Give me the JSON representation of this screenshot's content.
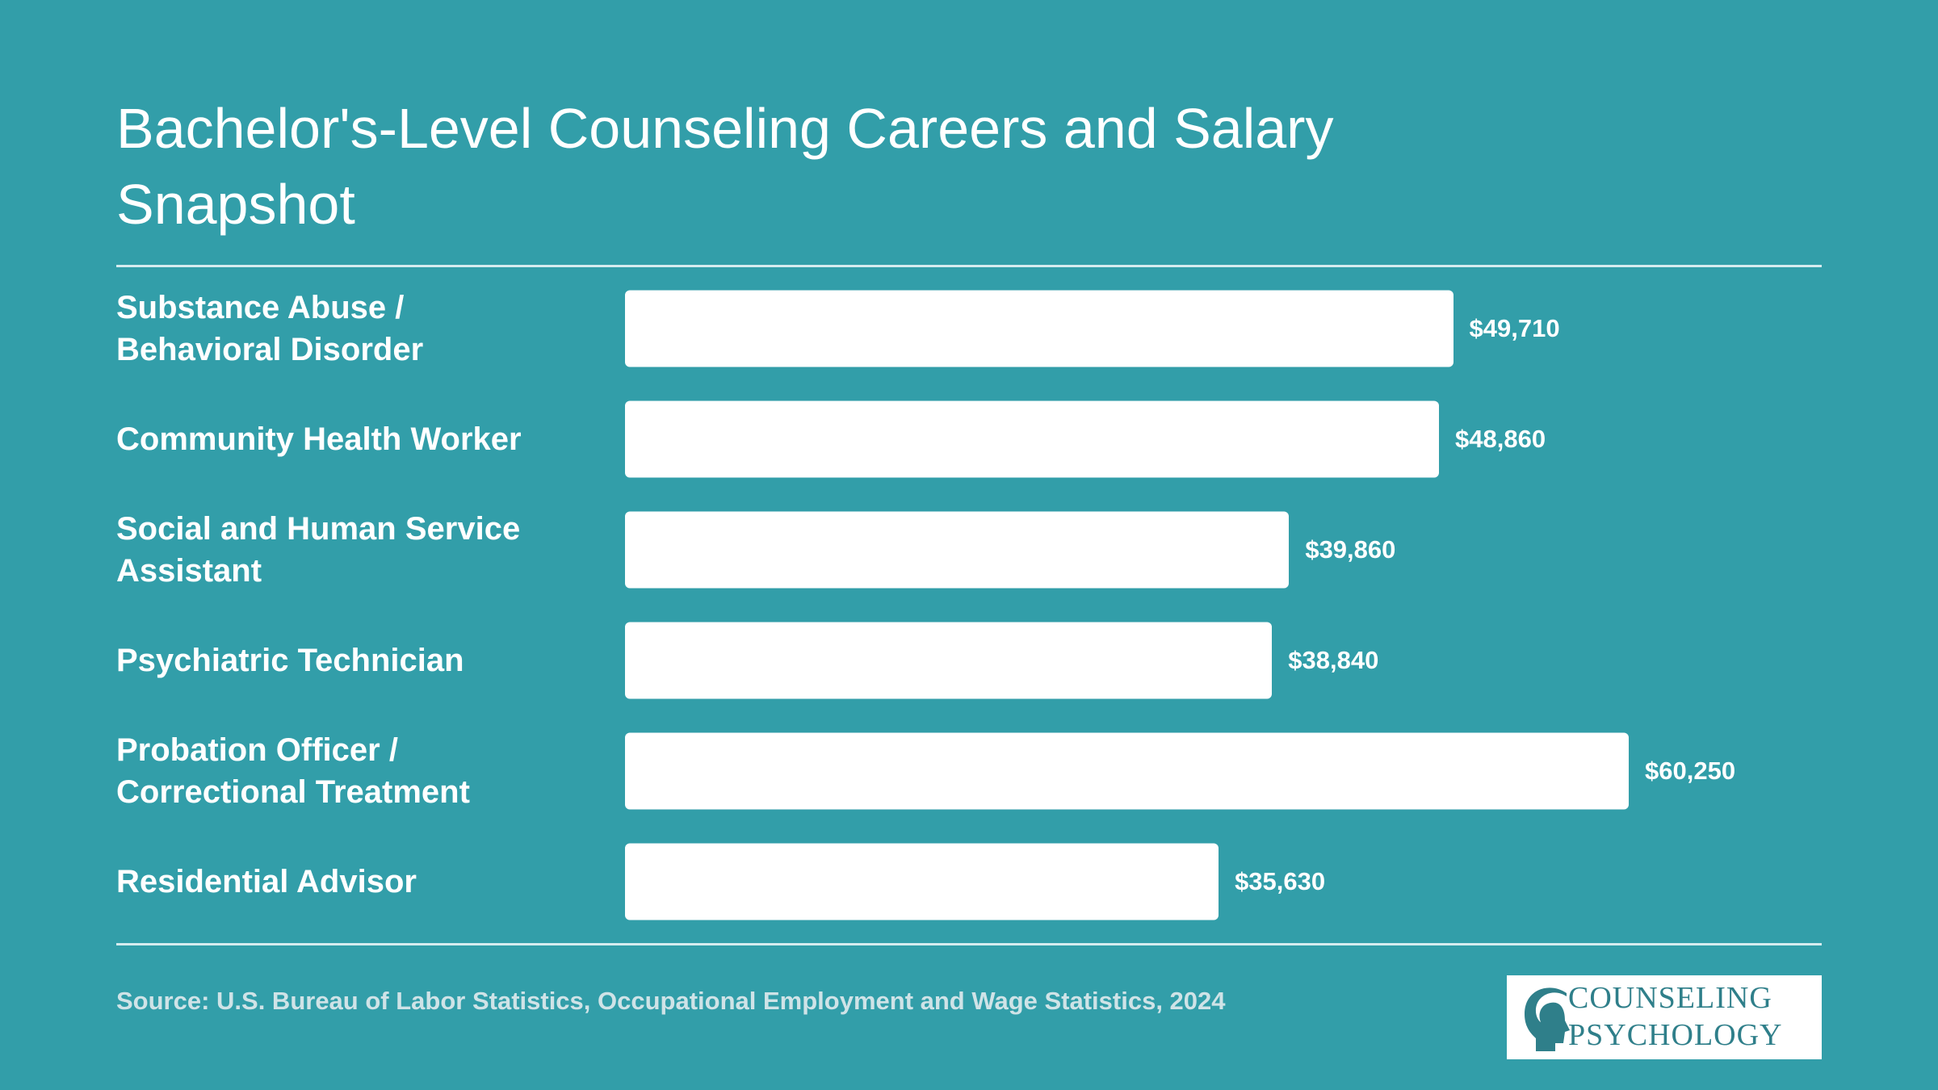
{
  "chart_data": {
    "type": "bar",
    "orientation": "horizontal",
    "title": "Bachelor's-Level Counseling Careers and Salary Snapshot",
    "categories": [
      "Substance Abuse / Behavioral Disorder",
      "Community Health Worker",
      "Social and Human Service Assistant",
      "Psychiatric Technician",
      "Probation Officer / Correctional Treatment",
      "Residential Advisor"
    ],
    "values": [
      49710,
      48860,
      39860,
      38840,
      60250,
      35630
    ],
    "value_labels": [
      "$49,710",
      "$48,860",
      "$39,860",
      "$38,840",
      "$60,250",
      "$35,630"
    ],
    "color": "#ffffff",
    "source": "Source: U.S. Bureau of Labor Statistics, Occupational Employment and Wage Statistics, 2024"
  },
  "logo": {
    "line1": "COUNSELING",
    "line2": "PSYCHOLOGY"
  }
}
